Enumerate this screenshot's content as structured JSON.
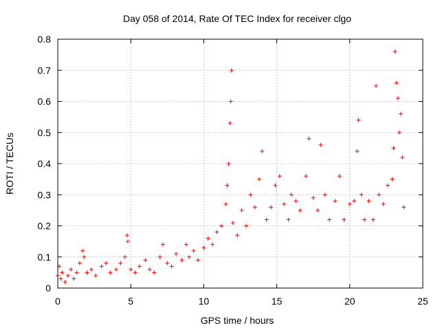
{
  "chart_data": {
    "type": "scatter",
    "title": "Day 058 of 2014, Rate Of TEC Index for receiver clgo",
    "xlabel": "GPS time / hours",
    "ylabel": "ROTI / TECUs",
    "xlim": [
      0,
      25
    ],
    "ylim": [
      0,
      0.8
    ],
    "x_ticks": [
      "0",
      "5",
      "10",
      "15",
      "20",
      "25"
    ],
    "y_ticks": [
      "0",
      "0.1",
      "0.2",
      "0.3",
      "0.4",
      "0.5",
      "0.6",
      "0.7",
      "0.8"
    ],
    "grid": true,
    "marker": "+",
    "color": "#ff0000",
    "series": [
      {
        "x": [
          0.0,
          0.1,
          0.2,
          0.3,
          0.5,
          0.7,
          0.9,
          1.1,
          1.3,
          1.5,
          1.7,
          1.8,
          2.0,
          2.3,
          2.6,
          3.0,
          3.3,
          3.6,
          4.0,
          4.3,
          4.6,
          4.75,
          4.8,
          5.0,
          5.3,
          5.6,
          6.0,
          6.3,
          6.6,
          7.0,
          7.2,
          7.5,
          7.8,
          8.1,
          8.5,
          8.8,
          9.0,
          9.3,
          9.6,
          10.0,
          10.3,
          10.6,
          10.9,
          11.2,
          11.5,
          11.6,
          11.7,
          11.8,
          11.85,
          11.9,
          12.0,
          12.3,
          12.6,
          12.9,
          13.2,
          13.5,
          13.8,
          14.0,
          14.3,
          14.6,
          14.9,
          15.2,
          15.5,
          15.8,
          16.0,
          16.3,
          16.6,
          17.0,
          17.2,
          17.5,
          17.8,
          18.0,
          18.3,
          18.6,
          19.0,
          19.3,
          19.6,
          20.0,
          20.3,
          20.5,
          20.6,
          20.8,
          21.0,
          21.3,
          21.6,
          21.8,
          22.0,
          22.3,
          22.6,
          22.9,
          23.0,
          23.1,
          23.2,
          23.3,
          23.4,
          23.5,
          23.6,
          23.7
        ],
        "y": [
          0.04,
          0.07,
          0.03,
          0.05,
          0.02,
          0.04,
          0.06,
          0.03,
          0.05,
          0.08,
          0.12,
          0.1,
          0.05,
          0.06,
          0.04,
          0.07,
          0.08,
          0.05,
          0.06,
          0.08,
          0.1,
          0.17,
          0.15,
          0.06,
          0.05,
          0.07,
          0.09,
          0.06,
          0.05,
          0.1,
          0.14,
          0.08,
          0.07,
          0.11,
          0.09,
          0.14,
          0.1,
          0.12,
          0.09,
          0.13,
          0.16,
          0.14,
          0.18,
          0.2,
          0.27,
          0.33,
          0.4,
          0.53,
          0.6,
          0.7,
          0.21,
          0.17,
          0.25,
          0.2,
          0.3,
          0.26,
          0.35,
          0.44,
          0.22,
          0.26,
          0.33,
          0.36,
          0.27,
          0.22,
          0.3,
          0.28,
          0.25,
          0.36,
          0.48,
          0.29,
          0.25,
          0.46,
          0.3,
          0.22,
          0.28,
          0.36,
          0.22,
          0.27,
          0.28,
          0.44,
          0.54,
          0.3,
          0.22,
          0.28,
          0.22,
          0.65,
          0.3,
          0.27,
          0.33,
          0.35,
          0.45,
          0.76,
          0.66,
          0.61,
          0.5,
          0.56,
          0.42,
          0.26
        ]
      }
    ]
  }
}
